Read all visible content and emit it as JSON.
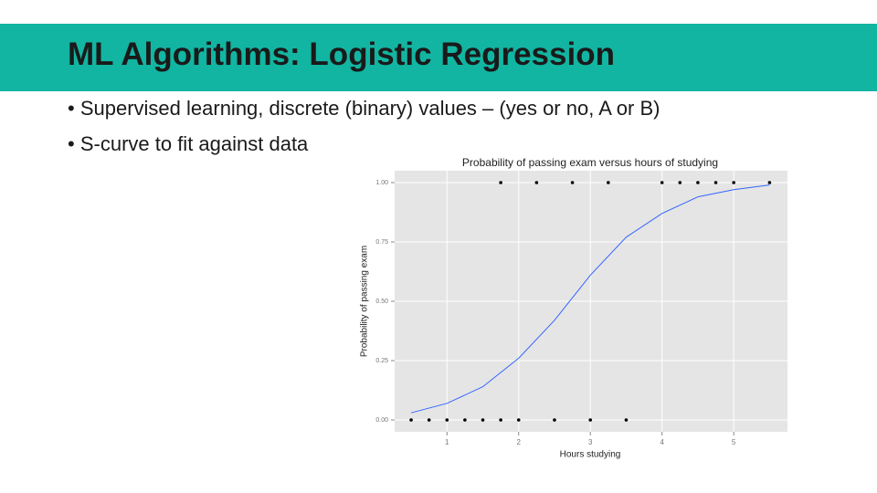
{
  "header": {
    "title": "ML Algorithms: Logistic Regression"
  },
  "bullets": [
    "Supervised learning, discrete (binary) values – (yes or no, A or B)",
    "S-curve to fit against data"
  ],
  "chart_data": {
    "type": "scatter",
    "title": "Probability of passing exam versus hours of studying",
    "x_label": "Hours studying",
    "y_label": "Probability of passing exam",
    "x": [
      0.5,
      0.75,
      1,
      1.25,
      1.5,
      1.75,
      1.75,
      2,
      2.25,
      2.5,
      2.75,
      3,
      3.25,
      3.5,
      4,
      4.25,
      4.5,
      4.75,
      5,
      5.5
    ],
    "values": [
      0,
      0,
      0,
      0,
      0,
      0,
      1,
      0,
      1,
      0,
      1,
      0,
      1,
      0,
      1,
      1,
      1,
      1,
      1,
      1
    ],
    "color": "#000000",
    "fit": {
      "x": [
        0.5,
        1,
        1.5,
        2,
        2.5,
        3,
        3.5,
        4,
        4.5,
        5,
        5.5
      ],
      "values": [
        0.03,
        0.07,
        0.14,
        0.26,
        0.42,
        0.61,
        0.77,
        0.87,
        0.94,
        0.97,
        0.99
      ],
      "color": "#3366ff"
    },
    "xlim": [
      0.27,
      5.75
    ],
    "ylim": [
      -0.05,
      1.05
    ],
    "xticks": [
      1,
      2,
      3,
      4,
      5
    ],
    "yticks": [
      {
        "value": 0,
        "label": "0.00"
      },
      {
        "value": 0.25,
        "label": "0.25"
      },
      {
        "value": 0.5,
        "label": "0.50"
      },
      {
        "value": 0.75,
        "label": "0.75"
      },
      {
        "value": 1,
        "label": "1.00"
      }
    ],
    "grid": true
  }
}
